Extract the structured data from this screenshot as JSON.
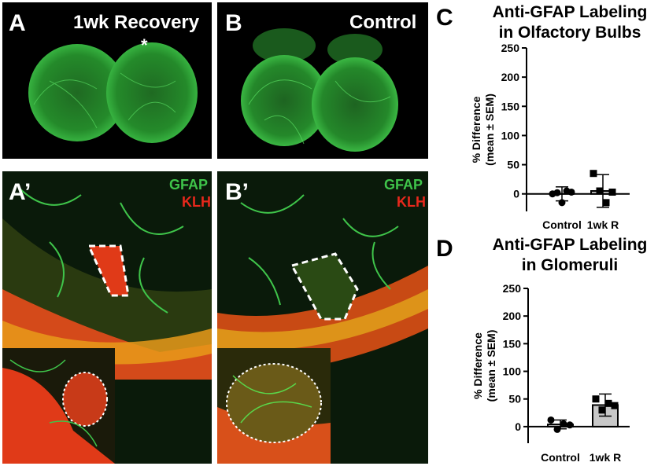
{
  "panels": {
    "A": {
      "label": "A",
      "title": "1wk Recovery",
      "marker": "*"
    },
    "B": {
      "label": "B",
      "title": "Control"
    },
    "A_prime": {
      "label": "A’",
      "ch1": "GFAP",
      "ch2": "KLH"
    },
    "B_prime": {
      "label": "B’",
      "ch1": "GFAP",
      "ch2": "KLH"
    }
  },
  "colors": {
    "gfap": "#3fc44a",
    "klh": "#e8281c",
    "bar_fill": "#c8c8c8",
    "axis": "#000000"
  },
  "chart_data": [
    {
      "panel_label": "C",
      "type": "bar",
      "title": "Anti-GFAP Labeling in Olfactory Bulbs",
      "title_lines": [
        "Anti-GFAP Labeling",
        "in Olfactory Bulbs"
      ],
      "ylabel": "% Difference (mean ± SEM)",
      "ylabel_lines": [
        "% Difference",
        "(mean ± SEM)"
      ],
      "categories": [
        "Control",
        "1wk R"
      ],
      "values": [
        0,
        5
      ],
      "sem": [
        12,
        28
      ],
      "points": [
        [
          0,
          2,
          -15,
          5,
          3
        ],
        [
          35,
          5,
          -15,
          3
        ]
      ],
      "ylim": [
        -30,
        250
      ],
      "yticks": [
        "0",
        "50",
        "100",
        "150",
        "200",
        "250"
      ],
      "ytick_values": [
        0,
        50,
        100,
        150,
        200,
        250
      ]
    },
    {
      "panel_label": "D",
      "type": "bar",
      "title": "Anti-GFAP Labeling in Glomeruli",
      "title_lines": [
        "Anti-GFAP Labeling",
        "in Glomeruli"
      ],
      "ylabel": "% Difference (mean ± SEM)",
      "ylabel_lines": [
        "% Difference",
        "(mean ± SEM)"
      ],
      "categories": [
        "Control",
        "1wk R"
      ],
      "values": [
        4,
        39
      ],
      "sem": [
        8,
        20
      ],
      "points": [
        [
          12,
          -5,
          5,
          3
        ],
        [
          50,
          30,
          42,
          38
        ]
      ],
      "ylim": [
        -30,
        250
      ],
      "yticks": [
        "0",
        "50",
        "100",
        "150",
        "200",
        "250"
      ],
      "ytick_values": [
        0,
        50,
        100,
        150,
        200,
        250
      ]
    }
  ]
}
